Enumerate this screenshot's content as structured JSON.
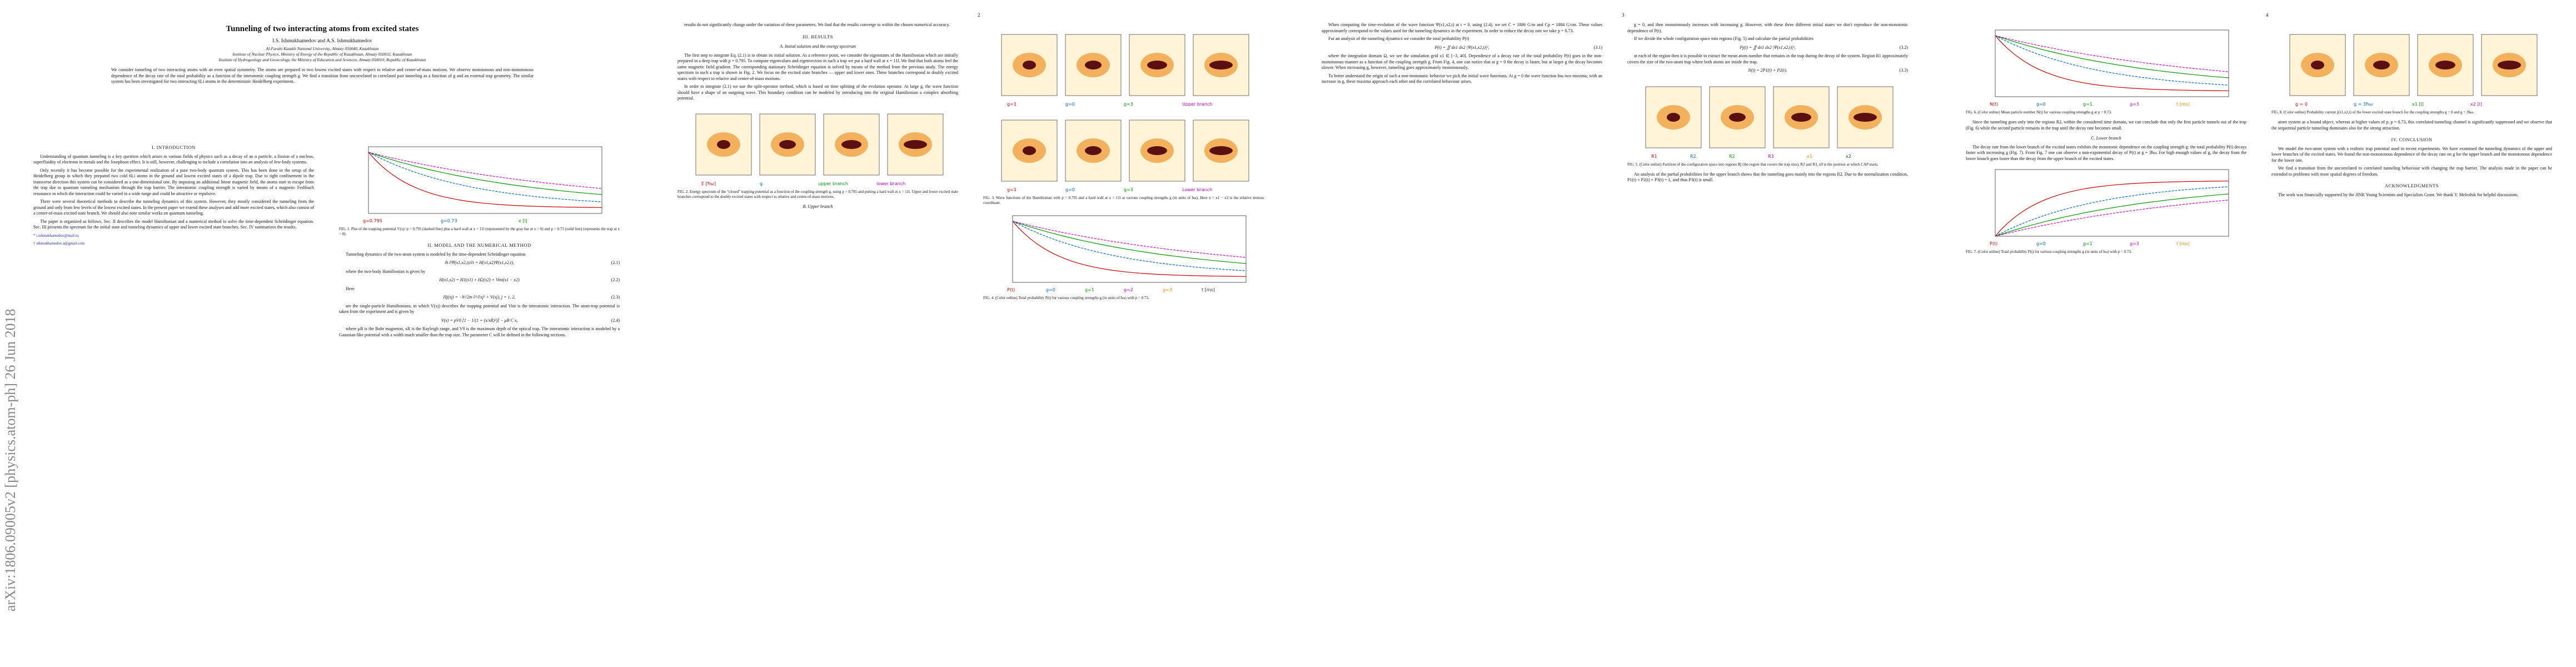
{
  "stamp": "arXiv:1806.09005v2  [physics.atom-ph]  26 Jun 2018",
  "pages": [
    {
      "header": {
        "title": "Tunneling of two interacting atoms from excited states",
        "authors": "I.S. Ishmukhamedov and A.S. Ishmukhamedov",
        "affiliations": [
          "Al-Farabi Kazakh National University, Almaty 050040, Kazakhstan",
          "Institute of Nuclear Physics, Ministry of Energy of the Republic of Kazakhstan, Almaty 050032, Kazakhstan",
          "Institute of Hydrogeology and Geoecology, the Ministry of Education and Sciences, Almaty 050010, Republic of Kazakhstan"
        ],
        "abstract": "We consider tunneling of two interacting atoms with an even spatial symmetry. The atoms are prepared in two lowest excited states with respect to relative and center-of-mass motions. We observe monotonous and non-monotonous dependence of the decay rate of the total probability as a function of the interatomic coupling strength g. We find a transition from uncorrelated to correlated pair tunneling as a function of g and an external trap geometry. The similar system has been investigated for two interacting 6Li atoms in the deterministic Heidelberg experiment."
      },
      "columns": [
        [
          {
            "heading": "I.  INTRODUCTION"
          },
          {
            "text": "Understanding of quantum tunneling is a key question which arises in various fields of physics such as a decay of an α particle, a fission of a nucleus, superfluidity of electrons in metals and the Josephson effect. It is still, however, challenging to include a correlation into an analysis of few-body systems."
          },
          {
            "text": "Only recently it has become possible for the experimental realization of a pure two-body quantum system. This has been done in the setup of the Heidelberg group in which they prepared two cold 6Li atoms in the ground and lowest excited states of a dipole trap. Due to tight confinement in the transverse direction this system can be considered as a one-dimensional one. By imposing an additional linear magnetic field, the atoms start to escape from the trap due to quantum tunneling mechanism through the trap barrier. The interatomic coupling strength is varied by means of a magnetic Feshbach resonance in which the interaction could be varied in a wide range and could be attractive or repulsive."
          },
          {
            "text": "There were several theoretical methods to describe the tunneling dynamics of this system. However, they mostly considered the tunneling from the ground and only from few levels of the lowest excited states. In the present paper we extend these analyses and add more excited states, which also consist of a center-of-mass excited state branch. We should also note similar works on quantum tunneling."
          },
          {
            "text": "The paper is organized as follows. Sec. II describes the model Hamiltonian and a numerical method to solve the time-dependent Schrödinger equation. Sec. III presents the spectrum for the initial state and tunneling dynamics of upper and lower excited state branches. Sec. IV summarizes the results."
          },
          {
            "note": "* i.ishmukhamedov@mail.ru"
          },
          {
            "note": "† ishmukhamedov.a@gmail.com"
          }
        ],
        [
          {
            "fig": [
              "g=0.795",
              "g=0.73",
              "x [l]"
            ]
          },
          {
            "caption": "FIG. 1. Plot of the trapping potential V(x): p = 0.795 (dashed line) plus a hard wall at x = 11l (represented by the gray bar at x = 0) and p = 0.73 (solid line) (represents the trap at x = 0)."
          },
          {
            "heading": "II.  MODEL AND THE NUMERICAL METHOD"
          },
          {
            "text": "Tunneling dynamics of the two-atom system is modeled by the time-dependent Schrödinger equation"
          },
          {
            "eq": "iħ ∂Ψ(x1,x2,t)/∂t = H(x1,x2)Ψ(x1,x2,t),",
            "n": "(2.1)"
          },
          {
            "text": "where the two-body Hamiltonian is given by"
          },
          {
            "eq": "H(x1,x2) = H1(x1) + H2(x2) + Vint(x1 − x2)",
            "n": "(2.2)"
          },
          {
            "text": "Here"
          },
          {
            "eq": "Hj(xj) = −ħ²/2m ∂²/∂xj² + V(xj),   j = 1, 2,",
            "n": "(2.3)"
          },
          {
            "text": "are the single-particle Hamiltonians, in which V(xj) describes the trapping potential and Vint is the interatomic interaction. The atom-trap potential is taken from the experiment and is given by"
          },
          {
            "eq": "V(x) = pV0 [1 − 1/(1 + (x/xR)²)] − μB C x,",
            "n": "(2.4)"
          },
          {
            "text": "where μB is the Bohr magneton, xR is the Rayleigh range, and V0 is the maximum depth of the optical trap. The interatomic interaction is modeled by a Gaussian-like potential with a width much smaller than the trap size. The parameter C will be defined in the following sections."
          }
        ]
      ]
    },
    {
      "number": "2",
      "columns": [
        [
          {
            "text": "results do not significantly change under the variation of these parameters. We find that the results converge to within the chosen numerical accuracy."
          },
          {
            "heading": "III.  RESULTS"
          },
          {
            "sub": "A.  Initial solution and the energy spectrum"
          },
          {
            "text": "The first step to integrate Eq. (2.1) is to obtain its initial solution. As a reference point, we consider the eigenstates of the Hamiltonian which are initially prepared in a deep trap with p = 0.795. To compute eigenvalues and eigenvectors in such a trap we put a hard wall at x = 11l. We find that both atoms feel the same magnetic field gradient. The corresponding stationary Schrödinger equation is solved by means of the method from the previous study. The energy spectrum in such a trap is shown in Fig. 2. We focus on the excited state branches — upper and lower ones. These branches correspond to doubly excited states with respect to relative and center-of-mass motions."
          },
          {
            "text": "In order to integrate (2.1) we use the split-operator method, which is based on time splitting of the evolution operator. At large g, the wave function should have a shape of an outgoing wave. This boundary condition can be modeled by introducing into the original Hamiltonian a complex absorbing potential."
          },
          {
            "fig": [
              "E [ħω]",
              "g",
              "upper branch",
              "lower branch"
            ]
          },
          {
            "caption": "FIG. 2. Energy spectrum of the “closed” trapping potential as a function of the coupling strength g, using p = 0.795 and putting a hard wall at x = 11l. Upper and lower excited state branches correspond to the doubly excited states with respect to relative and center-of-mass motions."
          },
          {
            "sub": "B.  Upper branch"
          }
        ],
        [
          {
            "fig": [
              "g=1",
              "g=0",
              "g=3",
              "Upper branch"
            ]
          },
          {
            "fig": [
              "g=1",
              "g=0",
              "g=3",
              "Lower branch"
            ]
          },
          {
            "caption": "FIG. 3. Wave functions of the Hamiltonian with p = 0.795 and a hard wall at x = 11l at various coupling strengths g (in units of ħω). Here x = x1 − x2 is the relative motion coordinate."
          },
          {
            "fig": [
              "P(t)",
              "g=0",
              "g=1",
              "g=2",
              "g=3",
              "t [ms]"
            ]
          },
          {
            "caption": "FIG. 4. (Color online) Total probability P(t) for various coupling strengths g (in units of ħω) with p = 0.73."
          }
        ]
      ]
    },
    {
      "number": "3",
      "columns": [
        [
          {
            "text": "When computing the time-evolution of the wave function Ψ(x1,x2,t) at t = 0, using (2.4), we set C = 1886 G/m and Cp = 1884 G/cm. These values approximately correspond to the values used for the tunneling dynamics in the experiment. In order to reduce the decay rate we take p = 0.73."
          },
          {
            "text": "For an analysis of the tunneling dynamics we consider the total probability P(t)"
          },
          {
            "eq": "P(t) = ∬ dx1 dx2 |Ψ(x1,x2,t)|²,",
            "n": "(3.1)"
          },
          {
            "text": "where the integration domain Ω, we see the simulation grid x1 ∈ [−3, 40]. Dependence of a decay rate of the total probability P(t) goes in the non-monotonous manner as a function of the coupling strength g. From Fig. 4, one can notice that at g = 0 the decay is faster, but at larger g the decay becomes slower. When increasing g, however, tunneling goes approximately monotonously."
          },
          {
            "text": "To better understand the origin of such a non-monotonic behavior we pick the initial wave functions. At g = 0 the wave function has two maxima; with an increase in g, these maxima approach each other and the correlated behaviour arises."
          }
        ],
        [
          {
            "text": "g = 0, and then monotonously increases with increasing g. However, with these three different initial states we don't reproduce the non-monotonic dependence of P(t)."
          },
          {
            "text": "If we divide the whole configuration space into regions (Fig. 5) and calculate the partial probabilities"
          },
          {
            "eq": "Pj(t) = ∬ dx1 dx2 |Ψ(x1,x2,t)|²,",
            "n": "(3.2)"
          },
          {
            "text": "at each of the region then it is possible to extract the mean atom number that remains in the trap during the decay of the system. Region R1 approximately covers the size of the two-atom trap where both atoms are inside the trap."
          },
          {
            "eq": "N(t) = 2P1(t) + P2(t).",
            "n": "(3.3)"
          },
          {
            "fig": [
              "R1",
              "R2",
              "R2",
              "R3",
              "x1",
              "x2"
            ]
          },
          {
            "caption": "FIG. 5. (Color online) Partition of the configuration space into regions Rj (the region that covers the trap size), R2 and R3, x0 is the position at which CAP starts."
          },
          {
            "text": "An analysis of the partial probabilities for the upper branch shows that the tunneling goes mainly into the regions R2. Due to the normalization condition, P1(t) + P2(t) + P3(t) = 1, and thus P3(t) is small."
          }
        ]
      ]
    },
    {
      "number": "4",
      "columns": [
        [
          {
            "fig": [
              "N(t)",
              "g=0",
              "g=1",
              "g=3",
              "t [ms]"
            ]
          },
          {
            "caption": "FIG. 6. (Color online) Mean particle number N(t) for various coupling strengths g at p = 0.73."
          },
          {
            "text": "Since the tunneling goes only into the regions R2, within the considered time domain, we can conclude that only the first particle tunnels out of the trap (Fig. 6) while the second particle remains in the trap until the decay rate becomes small."
          },
          {
            "sub": "C.  Lower branch"
          },
          {
            "text": "The decay rate from the lower branch of the excited states exhibits the monotonic dependence on the coupling strength g: the total probability P(t) decays faster with increasing g (Fig. 7). From Fig. 7 one can observe a non-exponential decay of P(t) at g = 3ħω. For high enough values of g, the decay from the lower branch goes faster than the decay from the upper branch of the excited states."
          },
          {
            "fig": [
              "P(t)",
              "g=0",
              "g=1",
              "g=3",
              "t [ms]"
            ]
          },
          {
            "caption": "FIG. 7. (Color online) Total probability P(t) for various coupling strengths g (in units of ħω) with p = 0.73."
          }
        ],
        [
          {
            "fig": [
              "g = 0",
              "g = 3ħω",
              "x1 [l]",
              "x2 [l]"
            ]
          },
          {
            "caption": "FIG. 8. (Color online) Probability current j(x1,x2,t) of the lower excited state branch for the coupling strengths g = 0 and g = 3ħω."
          },
          {
            "text": "atom system as a bound object, whereas at higher values of p, p = 0.73, this correlated tunneling channel is significantly suppressed and we observe that the sequential particle tunneling dominates also for the strong attraction."
          },
          {
            "heading": "IV.  CONCLUSION"
          },
          {
            "text": "We model the two-atom system with a realistic trap potential used in recent experiments. We have examined the tunneling dynamics of the upper and lower branches of the excited states. We found the non-monotonous dependence of the decay rate on g for the upper branch and the monotonous dependence for the lower one."
          },
          {
            "text": "We find a transition from the uncorrelated to correlated tunneling behaviour with changing the trap barrier. The analysis made in the paper can be extended to problems with more spatial degrees of freedom."
          },
          {
            "heading": "ACKNOWLEDGMENTS"
          },
          {
            "text": "The work was financially supported by the JINR Young Scientists and Specialists Grant. We thank V. Melezhik for helpful discussions."
          }
        ]
      ]
    }
  ]
}
